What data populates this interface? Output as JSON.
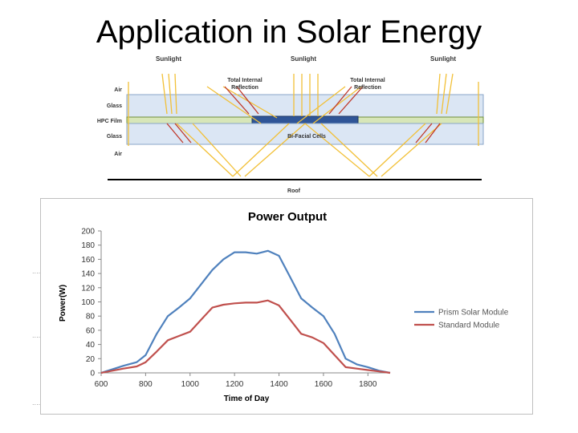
{
  "slide": {
    "title": "Application in Solar Energy"
  },
  "diagram": {
    "sunlight_labels": [
      "Sunlight",
      "Sunlight",
      "Sunlight"
    ],
    "tir_labels": [
      [
        "Total Internal",
        "Reflection"
      ],
      [
        "Total Internal",
        "Reflection"
      ]
    ],
    "layer_labels": [
      "Air",
      "Glass",
      "HPC Film",
      "Glass",
      "Air"
    ],
    "cells_label": "Bi-Facial Cells",
    "roof_label": "Roof",
    "colors": {
      "glass": "#dbe6f4",
      "film": "#d7e6b8",
      "cell": "#2f5597",
      "ray": "#f2c037",
      "reflect": "#c0392b"
    }
  },
  "chart_data": {
    "type": "line",
    "title": "Power Output",
    "xlabel": "Time of Day",
    "ylabel": "Power(W)",
    "xlim": [
      600,
      1900
    ],
    "ylim": [
      0,
      200
    ],
    "xticks": [
      600,
      800,
      1000,
      1200,
      1400,
      1600,
      1800
    ],
    "yticks": [
      0,
      20,
      40,
      60,
      80,
      100,
      120,
      140,
      160,
      180,
      200
    ],
    "grid": false,
    "legend_position": "right",
    "series": [
      {
        "name": "Prism Solar Module",
        "color": "#4f81bd",
        "x": [
          600,
          700,
          760,
          800,
          850,
          900,
          950,
          1000,
          1050,
          1100,
          1150,
          1200,
          1250,
          1300,
          1350,
          1400,
          1450,
          1500,
          1550,
          1600,
          1650,
          1700,
          1750,
          1800,
          1850,
          1900
        ],
        "y": [
          0,
          10,
          15,
          25,
          55,
          80,
          92,
          105,
          125,
          145,
          160,
          170,
          170,
          168,
          172,
          165,
          135,
          105,
          92,
          80,
          55,
          20,
          12,
          8,
          3,
          0
        ]
      },
      {
        "name": "Standard Module",
        "color": "#c0504d",
        "x": [
          600,
          700,
          760,
          800,
          850,
          900,
          950,
          1000,
          1050,
          1100,
          1150,
          1200,
          1250,
          1300,
          1350,
          1400,
          1450,
          1500,
          1550,
          1600,
          1650,
          1700,
          1750,
          1800,
          1850,
          1900
        ],
        "y": [
          0,
          6,
          9,
          15,
          30,
          46,
          52,
          58,
          75,
          92,
          96,
          98,
          99,
          99,
          102,
          95,
          75,
          55,
          50,
          42,
          25,
          8,
          6,
          4,
          2,
          0
        ]
      }
    ]
  }
}
